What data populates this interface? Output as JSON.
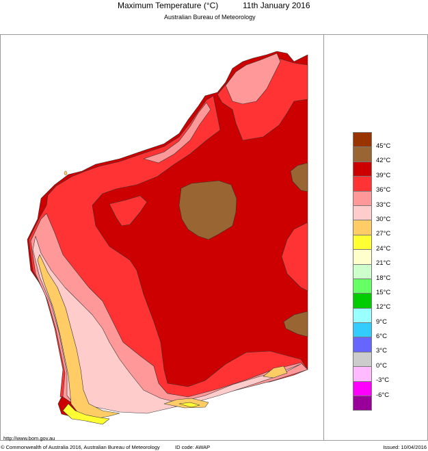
{
  "header": {
    "title": "Maximum Temperature (°C)",
    "date": "11th January 2016",
    "subtitle": "Australian Bureau of Meteorology"
  },
  "footer": {
    "url": "http://www.bom.gov.au",
    "copyright": "© Commonwealth of Australia 2016, Australian Bureau of Meteorology",
    "id_code": "ID code: AWAP",
    "issued": "Issued: 10/04/2016"
  },
  "legend": {
    "swatches": [
      {
        "range": ">45",
        "color": "#993300"
      },
      {
        "range": "42-45",
        "color": "#996633"
      },
      {
        "range": "39-42",
        "color": "#cc0000"
      },
      {
        "range": "36-39",
        "color": "#ff3333"
      },
      {
        "range": "33-36",
        "color": "#ff9999"
      },
      {
        "range": "30-33",
        "color": "#ffcccc"
      },
      {
        "range": "27-30",
        "color": "#ffcc66"
      },
      {
        "range": "24-27",
        "color": "#ffff33"
      },
      {
        "range": "21-24",
        "color": "#ffffcc"
      },
      {
        "range": "18-21",
        "color": "#ccffcc"
      },
      {
        "range": "15-18",
        "color": "#66ff66"
      },
      {
        "range": "12-15",
        "color": "#00cc00"
      },
      {
        "range": "9-12",
        "color": "#99ffff"
      },
      {
        "range": "6-9",
        "color": "#33ccff"
      },
      {
        "range": "3-6",
        "color": "#6666ff"
      },
      {
        "range": "0-3",
        "color": "#cccccc"
      },
      {
        "range": "-3-0",
        "color": "#ffbbff"
      },
      {
        "range": "-6--3",
        "color": "#ff00ff"
      },
      {
        "range": "<-6",
        "color": "#990099"
      }
    ],
    "labels": [
      "45°C",
      "42°C",
      "39°C",
      "36°C",
      "33°C",
      "30°C",
      "27°C",
      "24°C",
      "21°C",
      "18°C",
      "15°C",
      "12°C",
      "9°C",
      "6°C",
      "3°C",
      "0°C",
      "-3°C",
      "-6°C"
    ]
  },
  "map": {
    "region": "Western Australia",
    "colors": {
      "c42": "#996633",
      "c39": "#cc0000",
      "c36": "#ff3333",
      "c33": "#ff9999",
      "c30": "#ffcccc",
      "c27": "#ffcc66",
      "c24": "#ffff33",
      "outline": "#333333"
    }
  }
}
